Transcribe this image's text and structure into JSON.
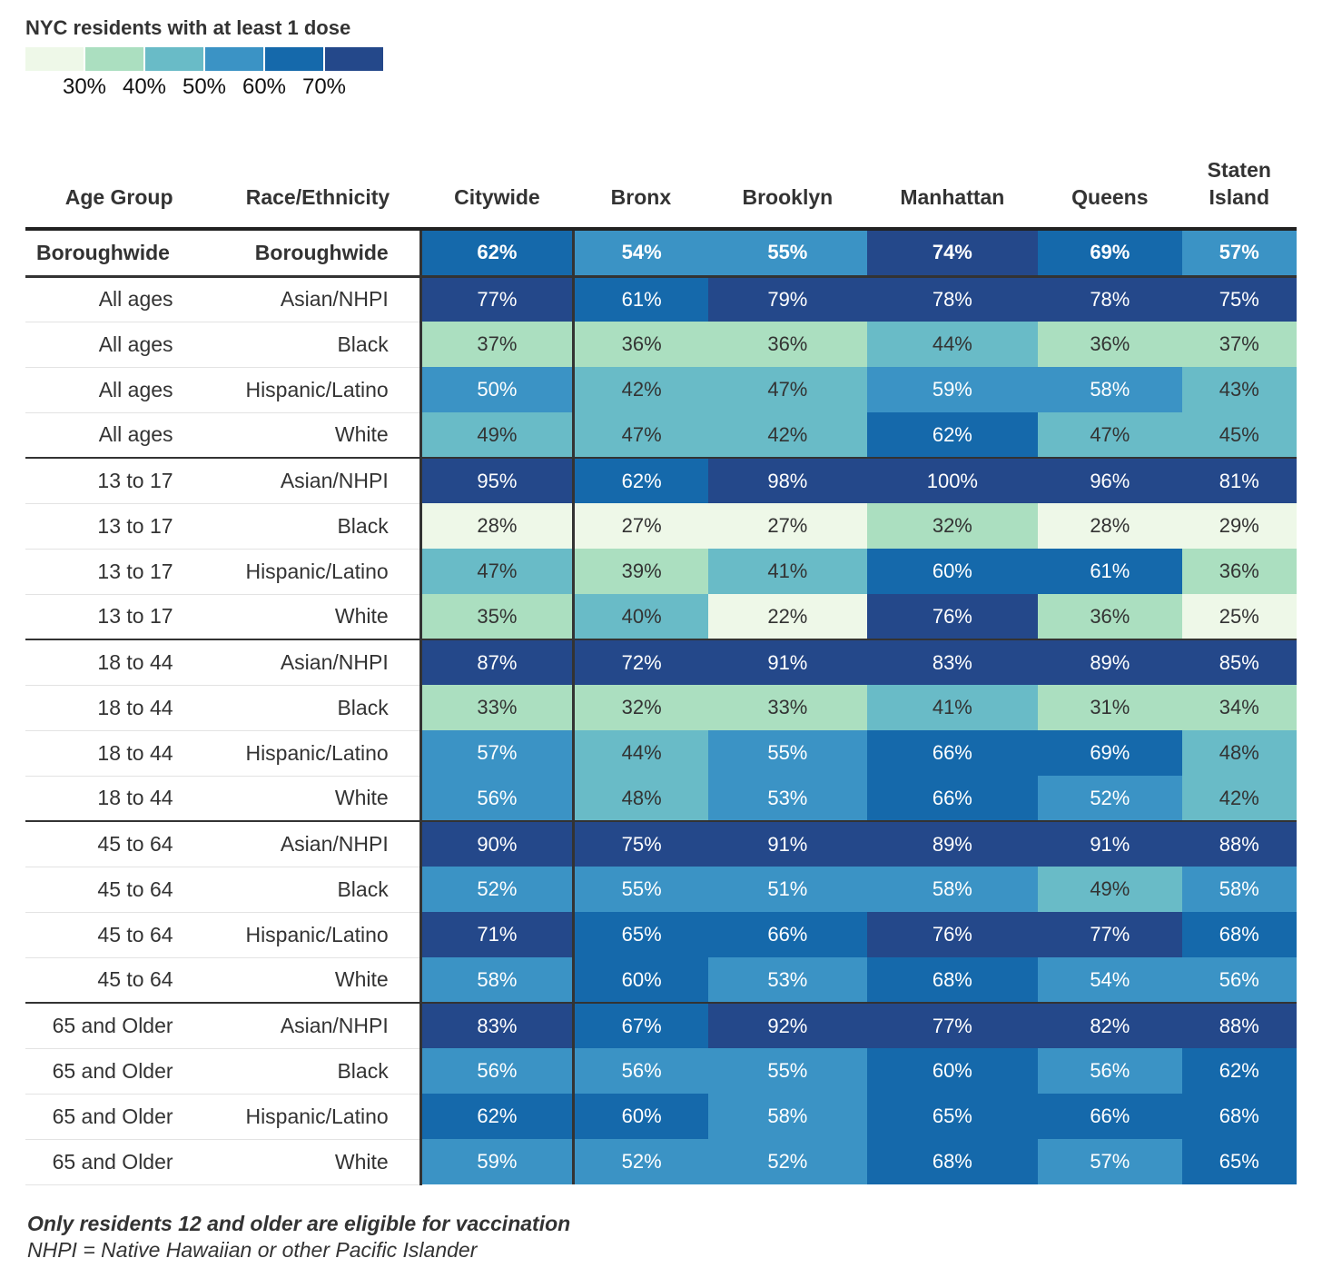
{
  "legend": {
    "title": "NYC residents with at least 1 dose",
    "colors": [
      "#eef8e8",
      "#abdfc0",
      "#69bbc7",
      "#3b93c5",
      "#1569ab",
      "#24488a"
    ],
    "labels": [
      "30%",
      "40%",
      "50%",
      "60%",
      "70%"
    ]
  },
  "notes": {
    "line1": "Only residents 12 and older are eligible for vaccination",
    "line2": "NHPI = Native Hawaiian or other Pacific Islander"
  },
  "chart_data": {
    "type": "heatmap",
    "title": "NYC residents with at least 1 dose",
    "columns": [
      "Age Group",
      "Race/Ethnicity",
      "Citywide",
      "Bronx",
      "Brooklyn",
      "Manhattan",
      "Queens",
      "Staten Island"
    ],
    "column_label_lines": {
      "Staten Island": [
        "Staten",
        "Island"
      ]
    },
    "rows": [
      {
        "age": "Boroughwide",
        "race": "Boroughwide",
        "values": [
          62,
          54,
          55,
          74,
          69,
          57
        ],
        "total": true
      },
      {
        "age": "All ages",
        "race": "Asian/NHPI",
        "values": [
          77,
          61,
          79,
          78,
          78,
          75
        ]
      },
      {
        "age": "All ages",
        "race": "Black",
        "values": [
          37,
          36,
          36,
          44,
          36,
          37
        ]
      },
      {
        "age": "All ages",
        "race": "Hispanic/Latino",
        "values": [
          50,
          42,
          47,
          59,
          58,
          43
        ]
      },
      {
        "age": "All ages",
        "race": "White",
        "values": [
          49,
          47,
          42,
          62,
          47,
          45
        ]
      },
      {
        "age": "13 to 17",
        "race": "Asian/NHPI",
        "values": [
          95,
          62,
          98,
          100,
          96,
          81
        ]
      },
      {
        "age": "13 to 17",
        "race": "Black",
        "values": [
          28,
          27,
          27,
          32,
          28,
          29
        ]
      },
      {
        "age": "13 to 17",
        "race": "Hispanic/Latino",
        "values": [
          47,
          39,
          41,
          60,
          61,
          36
        ]
      },
      {
        "age": "13 to 17",
        "race": "White",
        "values": [
          35,
          40,
          22,
          76,
          36,
          25
        ]
      },
      {
        "age": "18 to 44",
        "race": "Asian/NHPI",
        "values": [
          87,
          72,
          91,
          83,
          89,
          85
        ]
      },
      {
        "age": "18 to 44",
        "race": "Black",
        "values": [
          33,
          32,
          33,
          41,
          31,
          34
        ]
      },
      {
        "age": "18 to 44",
        "race": "Hispanic/Latino",
        "values": [
          57,
          44,
          55,
          66,
          69,
          48
        ]
      },
      {
        "age": "18 to 44",
        "race": "White",
        "values": [
          56,
          48,
          53,
          66,
          52,
          42
        ]
      },
      {
        "age": "45 to 64",
        "race": "Asian/NHPI",
        "values": [
          90,
          75,
          91,
          89,
          91,
          88
        ]
      },
      {
        "age": "45 to 64",
        "race": "Black",
        "values": [
          52,
          55,
          51,
          58,
          49,
          58
        ]
      },
      {
        "age": "45 to 64",
        "race": "Hispanic/Latino",
        "values": [
          71,
          65,
          66,
          76,
          77,
          68
        ]
      },
      {
        "age": "45 to 64",
        "race": "White",
        "values": [
          58,
          60,
          53,
          68,
          54,
          56
        ]
      },
      {
        "age": "65 and Older",
        "race": "Asian/NHPI",
        "values": [
          83,
          67,
          92,
          77,
          82,
          88
        ]
      },
      {
        "age": "65 and Older",
        "race": "Black",
        "values": [
          56,
          56,
          55,
          60,
          56,
          62
        ]
      },
      {
        "age": "65 and Older",
        "race": "Hispanic/Latino",
        "values": [
          62,
          60,
          58,
          65,
          66,
          68
        ]
      },
      {
        "age": "65 and Older",
        "race": "White",
        "values": [
          59,
          52,
          52,
          68,
          57,
          65
        ]
      }
    ]
  }
}
